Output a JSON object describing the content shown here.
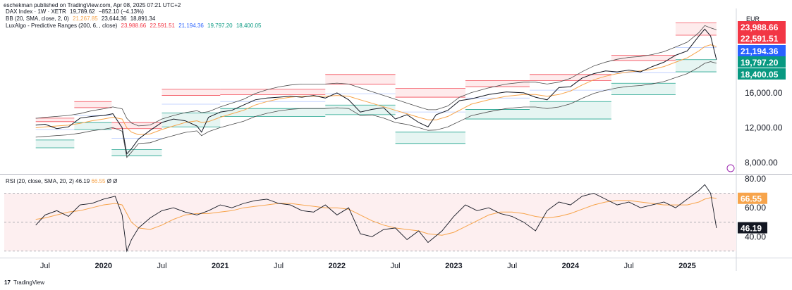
{
  "header": {
    "published_line": "eschekman published on TradingView.com, Apr 08, 2025 07:21 UTC+2"
  },
  "legend": {
    "main": {
      "name": "DAX Index · 1W · XETR",
      "value": "19,789.62",
      "change": "−852.10 (−4.13%)"
    },
    "bb": {
      "name": "BB (20, SMA, close, 2, 0)",
      "v1": "21,267.85",
      "v2": "23,644.36",
      "v3": "18,891.34"
    },
    "lux": {
      "name": "LuxAlgo - Predictive Ranges (200, 6, , close)",
      "v1": "23,988.66",
      "v2": "22,591.51",
      "v3": "21,194.36",
      "v4": "19,797.20",
      "v5": "18,400.05"
    }
  },
  "rsi_legend": {
    "name": "RSI (20, close, SMA, 20, 2)",
    "v1": "46.19",
    "v2": "66.55",
    "v3": "Ø",
    "v4": "Ø"
  },
  "footer": {
    "brand": "TradingView",
    "logo": "17"
  },
  "colors": {
    "price": "#131722",
    "bb_basis": "#f7a44b",
    "bb_band": "#4a4a4a",
    "red": "#f23645",
    "blue": "#2962ff",
    "teal": "#089981",
    "rsi_ma": "#f7a44b",
    "rsi_bg": "#fdeff0",
    "currency": "#131722"
  },
  "chart_data": [
    {
      "type": "line",
      "title": "DAX Index · 1W · XETR",
      "currency": "EUR",
      "x_ticks": [
        "Jul",
        "2020",
        "Jul",
        "2021",
        "Jul",
        "2022",
        "Jul",
        "2023",
        "Jul",
        "2024",
        "Jul",
        "2025"
      ],
      "y_ticks": [
        "16,000.00",
        "12,000.00",
        "8,000.00"
      ],
      "ylim": [
        6800,
        25500
      ],
      "price_labels": [
        {
          "value": "23,988.66",
          "color": "#f23645"
        },
        {
          "value": "22,591.51",
          "color": "#f23645"
        },
        {
          "value": "21,194.36",
          "color": "#2962ff"
        },
        {
          "value": "19,797.20",
          "color": "#089981"
        },
        {
          "value": "18,400.05",
          "color": "#089981"
        }
      ],
      "x": [
        2019.42,
        2019.5,
        2019.6,
        2019.7,
        2019.8,
        2019.9,
        2020.0,
        2020.08,
        2020.16,
        2020.2,
        2020.24,
        2020.3,
        2020.4,
        2020.5,
        2020.6,
        2020.7,
        2020.8,
        2020.84,
        2020.9,
        2021.0,
        2021.1,
        2021.2,
        2021.3,
        2021.4,
        2021.5,
        2021.6,
        2021.7,
        2021.8,
        2021.9,
        2022.0,
        2022.1,
        2022.2,
        2022.3,
        2022.4,
        2022.5,
        2022.6,
        2022.7,
        2022.78,
        2022.85,
        2022.95,
        2023.05,
        2023.15,
        2023.3,
        2023.45,
        2023.6,
        2023.7,
        2023.8,
        2023.9,
        2024.0,
        2024.1,
        2024.2,
        2024.3,
        2024.4,
        2024.5,
        2024.6,
        2024.7,
        2024.8,
        2024.9,
        2025.0,
        2025.1,
        2025.15,
        2025.2,
        2025.25
      ],
      "series": [
        {
          "name": "DAX Index · 1W · XETR",
          "values": [
            12300,
            12400,
            11900,
            12100,
            13100,
            13300,
            13400,
            13600,
            12000,
            9000,
            9600,
            10700,
            11700,
            12600,
            13000,
            12800,
            12200,
            11500,
            13200,
            13800,
            14000,
            14600,
            15200,
            15400,
            15500,
            15600,
            15500,
            15700,
            15400,
            16000,
            15200,
            13800,
            14100,
            14300,
            13000,
            13500,
            12600,
            12100,
            13500,
            14000,
            15100,
            15300,
            15800,
            16100,
            16000,
            15500,
            15200,
            16600,
            16700,
            17700,
            18200,
            18500,
            18400,
            18600,
            18400,
            19000,
            19500,
            20300,
            20800,
            22500,
            23300,
            22500,
            19800
          ]
        },
        {
          "name": "BB (20, SMA, close, 2, 0)",
          "values": [
            12000,
            12100,
            12200,
            12300,
            12500,
            12800,
            13000,
            13200,
            13000,
            12000,
            11500,
            11200,
            11300,
            11800,
            12200,
            12600,
            12800,
            12600,
            12700,
            13200,
            13600,
            14000,
            14600,
            15000,
            15300,
            15500,
            15600,
            15600,
            15600,
            15700,
            15600,
            15200,
            14800,
            14400,
            14000,
            13600,
            13200,
            12900,
            12900,
            13300,
            14000,
            14700,
            15200,
            15600,
            15800,
            15800,
            15600,
            15800,
            16200,
            16900,
            17500,
            17900,
            18200,
            18400,
            18500,
            18700,
            19000,
            19500,
            20000,
            20800,
            21300,
            21500,
            21300
          ]
        }
      ],
      "predictive_ranges": [
        {
          "x": [
            2019.42,
            2019.75
          ],
          "r2": 13100,
          "r1": 12700,
          "avg": 11800,
          "s1": 10600,
          "s2": 9700
        },
        {
          "x": [
            2019.75,
            2020.07
          ],
          "r2": 15000,
          "r1": 14300,
          "avg": 13400,
          "s1": 12600,
          "s2": 11800
        },
        {
          "x": [
            2020.07,
            2020.5
          ],
          "r2": 12600,
          "r1": 11900,
          "avg": 10800,
          "s1": 9500,
          "s2": 8800
        },
        {
          "x": [
            2020.5,
            2021.0
          ],
          "r2": 16400,
          "r1": 15700,
          "avg": 14700,
          "s1": 13700,
          "s2": 12100
        },
        {
          "x": [
            2021.0,
            2021.9
          ],
          "r2": 16400,
          "r1": 15800,
          "avg": 15000,
          "s1": 14200,
          "s2": 13300
        },
        {
          "x": [
            2021.9,
            2022.5
          ],
          "r2": 18100,
          "r1": 17000,
          "avg": 15900,
          "s1": 14600,
          "s2": 13500
        },
        {
          "x": [
            2022.5,
            2023.1
          ],
          "r2": 16500,
          "r1": 15500,
          "avg": 13800,
          "s1": 11500,
          "s2": 10200
        },
        {
          "x": [
            2023.1,
            2023.65
          ],
          "r2": 17400,
          "r1": 16700,
          "avg": 15400,
          "s1": 14100,
          "s2": 13000
        },
        {
          "x": [
            2023.65,
            2024.35
          ],
          "r2": 18100,
          "r1": 17400,
          "avg": 16300,
          "s1": 15000,
          "s2": 13000
        },
        {
          "x": [
            2024.35,
            2024.9
          ],
          "r2": 20300,
          "r1": 19700,
          "avg": 18300,
          "s1": 17100,
          "s2": 15800
        },
        {
          "x": [
            2024.9,
            2025.25
          ],
          "r2": 24000,
          "r1": 22600,
          "avg": 21200,
          "s1": 19800,
          "s2": 18400
        }
      ]
    },
    {
      "type": "line",
      "title": "RSI (20, close, SMA, 20, 2)",
      "y_ticks": [
        "80.00",
        "60.00",
        "40.00"
      ],
      "ylim": [
        26,
        82
      ],
      "bands": [
        30,
        50,
        70
      ],
      "price_labels": [
        {
          "value": "66.55",
          "color": "#f7a44b"
        },
        {
          "value": "46.19",
          "color": "#131722"
        }
      ],
      "x": [
        2019.42,
        2019.5,
        2019.6,
        2019.7,
        2019.8,
        2019.9,
        2020.0,
        2020.1,
        2020.16,
        2020.2,
        2020.24,
        2020.3,
        2020.4,
        2020.5,
        2020.6,
        2020.7,
        2020.8,
        2020.9,
        2021.0,
        2021.1,
        2021.2,
        2021.3,
        2021.4,
        2021.5,
        2021.6,
        2021.7,
        2021.8,
        2021.9,
        2022.0,
        2022.1,
        2022.2,
        2022.3,
        2022.4,
        2022.5,
        2022.6,
        2022.7,
        2022.78,
        2022.9,
        2023.0,
        2023.1,
        2023.2,
        2023.3,
        2023.4,
        2023.5,
        2023.6,
        2023.7,
        2023.8,
        2023.9,
        2024.0,
        2024.1,
        2024.2,
        2024.3,
        2024.4,
        2024.5,
        2024.6,
        2024.7,
        2024.8,
        2024.9,
        2025.0,
        2025.1,
        2025.15,
        2025.2,
        2025.25
      ],
      "series": [
        {
          "name": "RSI (20, close, SMA, 20, 2)",
          "values": [
            48,
            55,
            58,
            54,
            62,
            63,
            66,
            68,
            55,
            30,
            38,
            46,
            53,
            58,
            60,
            57,
            55,
            58,
            62,
            60,
            63,
            65,
            66,
            63,
            62,
            58,
            57,
            62,
            55,
            60,
            42,
            40,
            45,
            46,
            38,
            44,
            36,
            44,
            54,
            62,
            58,
            60,
            56,
            54,
            50,
            44,
            58,
            64,
            62,
            68,
            70,
            66,
            62,
            64,
            60,
            62,
            64,
            60,
            66,
            72,
            76,
            70,
            46
          ]
        },
        {
          "name": "RSI-MA",
          "values": [
            52,
            53,
            55,
            57,
            58,
            60,
            62,
            63,
            62,
            56,
            50,
            46,
            45,
            48,
            52,
            55,
            56,
            56,
            57,
            58,
            60,
            61,
            62,
            63,
            63,
            62,
            61,
            60,
            60,
            59,
            55,
            51,
            48,
            46,
            45,
            44,
            42,
            41,
            43,
            47,
            51,
            55,
            57,
            57,
            56,
            54,
            53,
            54,
            56,
            59,
            62,
            64,
            65,
            65,
            64,
            63,
            62,
            62,
            62,
            64,
            66,
            67,
            66.5
          ]
        }
      ]
    }
  ]
}
